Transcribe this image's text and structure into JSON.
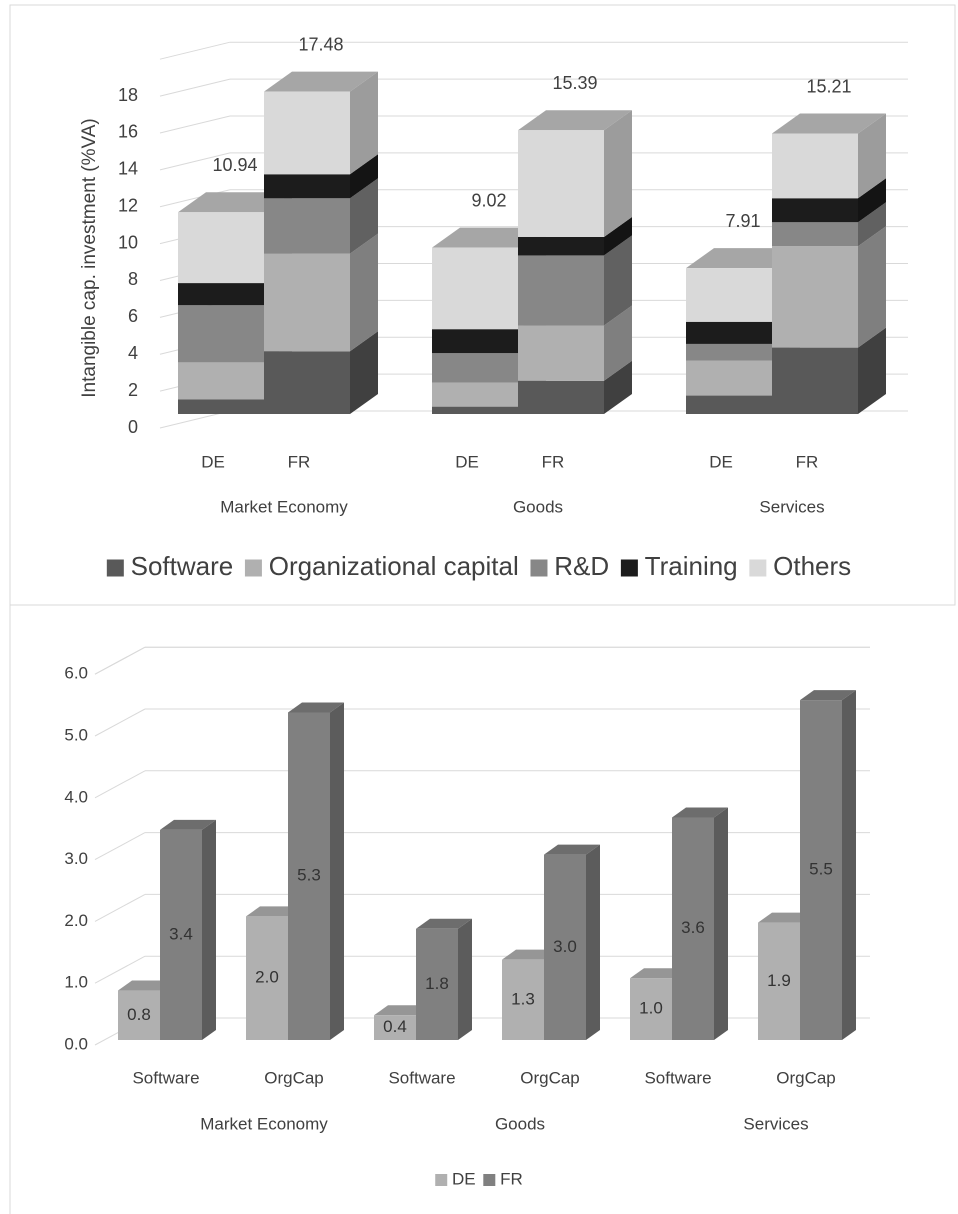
{
  "chart_data": [
    {
      "type": "bar",
      "stacked": true,
      "ylabel": "Intangible cap. investment (%VA)",
      "categories": [
        "DE",
        "FR",
        "DE",
        "FR",
        "DE",
        "FR"
      ],
      "groups": [
        "Market Economy",
        "Goods",
        "Services"
      ],
      "series": [
        {
          "name": "Software",
          "color": "#595959",
          "values": [
            0.8,
            3.4,
            0.4,
            1.8,
            1.0,
            3.6
          ]
        },
        {
          "name": "Organizational capital",
          "color": "#b0b0b0",
          "values": [
            2.0,
            5.3,
            1.3,
            3.0,
            1.9,
            5.5
          ]
        },
        {
          "name": "R&D",
          "color": "#878787",
          "values": [
            3.1,
            3.0,
            1.6,
            3.8,
            0.9,
            1.3
          ]
        },
        {
          "name": "Training",
          "color": "#1c1c1c",
          "values": [
            1.2,
            1.3,
            1.3,
            1.0,
            1.2,
            1.3
          ]
        },
        {
          "name": "Others",
          "color": "#d9d9d9",
          "values": [
            3.84,
            4.48,
            4.42,
            5.79,
            2.91,
            3.51
          ]
        }
      ],
      "total_labels": [
        10.94,
        17.48,
        9.02,
        15.39,
        7.91,
        15.21
      ],
      "ylim": [
        0,
        20
      ],
      "yticks": [
        0,
        2,
        4,
        6,
        8,
        10,
        12,
        14,
        16,
        18
      ],
      "grid": true,
      "legend": "bottom"
    },
    {
      "type": "bar",
      "stacked": false,
      "categories": [
        "Software",
        "OrgCap",
        "Software",
        "OrgCap",
        "Software",
        "OrgCap"
      ],
      "groups": [
        "Market Economy",
        "Goods",
        "Services"
      ],
      "series": [
        {
          "name": "DE",
          "color": "#b0b0b0",
          "values": [
            0.8,
            2.0,
            0.4,
            1.3,
            1.0,
            1.9
          ],
          "value_labels": [
            "0.8",
            "2.0",
            "0.4",
            "1.3",
            "1.0",
            "1.9"
          ]
        },
        {
          "name": "FR",
          "color": "#808080",
          "values": [
            3.4,
            5.3,
            1.8,
            3.0,
            3.6,
            5.5
          ],
          "value_labels": [
            "3.4",
            "5.3",
            "1.8",
            "3.0",
            "3.6",
            "5.5"
          ]
        }
      ],
      "ylim": [
        0,
        6
      ],
      "yticks": [
        {
          "value": 0,
          "label": "0.0"
        },
        {
          "value": 1,
          "label": "1.0"
        },
        {
          "value": 2,
          "label": "2.0"
        },
        {
          "value": 3,
          "label": "3.0"
        },
        {
          "value": 4,
          "label": "4.0"
        },
        {
          "value": 5,
          "label": "5.0"
        },
        {
          "value": 6,
          "label": "6.0"
        }
      ],
      "grid": true,
      "legend": "bottom"
    }
  ]
}
